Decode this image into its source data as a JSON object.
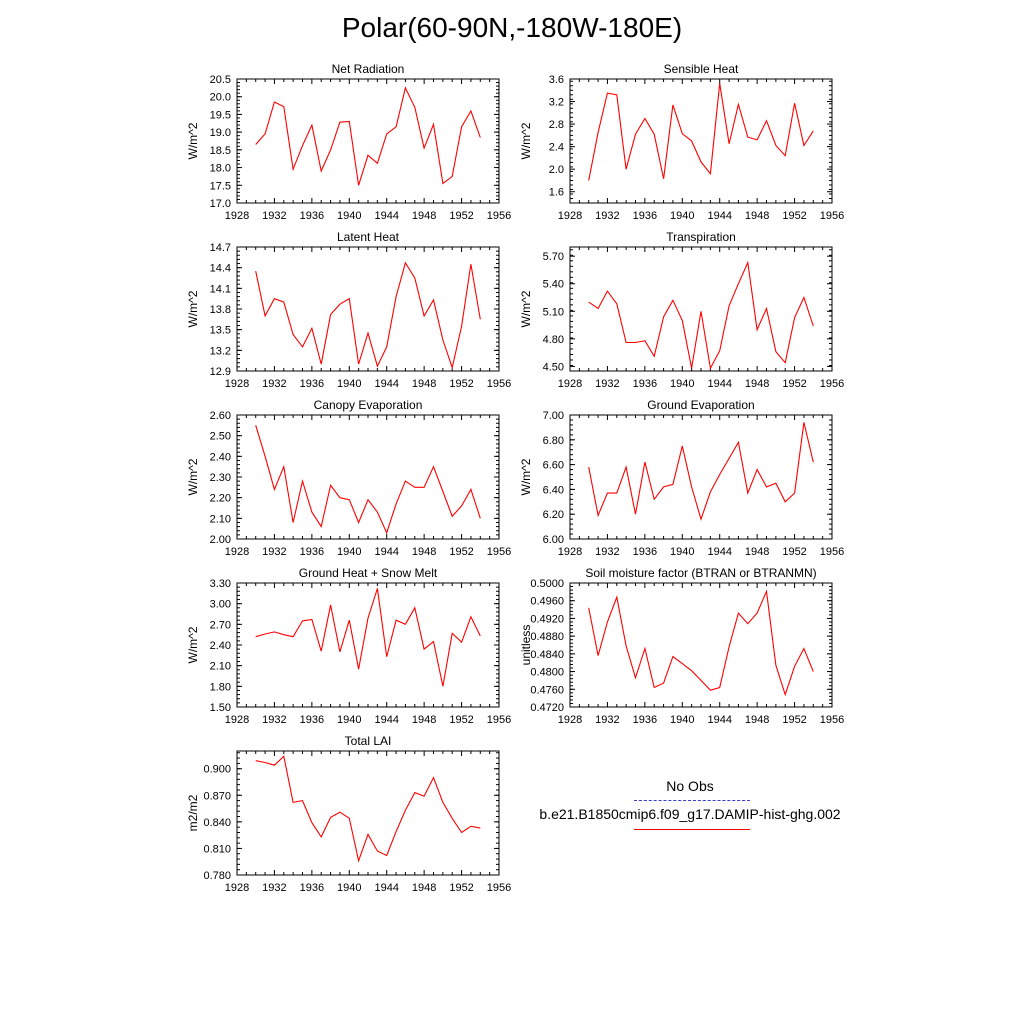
{
  "title": "Polar(60-90N,-180W-180E)",
  "legend": {
    "obs_label": "No Obs",
    "model_label": "b.e21.B1850cmip6.f09_g17.DAMIP-hist-ghg.002",
    "obs_color": "#3a3ad0",
    "model_color": "#ff0000"
  },
  "x_ticks": [
    1928,
    1932,
    1936,
    1940,
    1944,
    1948,
    1952,
    1956
  ],
  "years": [
    1930,
    1931,
    1932,
    1933,
    1934,
    1935,
    1936,
    1937,
    1938,
    1939,
    1940,
    1941,
    1942,
    1943,
    1944,
    1945,
    1946,
    1947,
    1948,
    1949,
    1950,
    1951,
    1952,
    1953,
    1954
  ],
  "chart_data": [
    {
      "type": "line",
      "title": "Net Radiation",
      "ylabel": "W/m^2",
      "xlim": [
        1928,
        1956
      ],
      "ylim": [
        17.0,
        20.5
      ],
      "yticks": [
        17.0,
        17.5,
        18.0,
        18.5,
        19.0,
        19.5,
        20.0,
        20.5
      ],
      "ytick_labels": [
        "17.0",
        "17.5",
        "18.0",
        "18.5",
        "19.0",
        "19.5",
        "20.0",
        "20.5"
      ],
      "series": [
        {
          "values": [
            18.65,
            18.95,
            19.85,
            19.72,
            17.95,
            18.62,
            19.2,
            17.9,
            18.5,
            19.28,
            19.3,
            17.5,
            18.35,
            18.12,
            18.95,
            19.15,
            20.25,
            19.7,
            18.55,
            19.22,
            17.55,
            17.75,
            19.15,
            19.6,
            18.85
          ]
        }
      ]
    },
    {
      "type": "line",
      "title": "Sensible Heat",
      "ylabel": "W/m^2",
      "xlim": [
        1928,
        1956
      ],
      "ylim": [
        1.4,
        3.6
      ],
      "yticks": [
        1.6,
        2.0,
        2.4,
        2.8,
        3.2,
        3.6
      ],
      "ytick_labels": [
        "1.6",
        "2.0",
        "2.4",
        "2.8",
        "3.2",
        "3.6"
      ],
      "series": [
        {
          "values": [
            1.8,
            2.65,
            3.35,
            3.32,
            2.0,
            2.62,
            2.9,
            2.62,
            1.83,
            3.14,
            2.63,
            2.5,
            2.13,
            1.92,
            3.52,
            2.45,
            3.15,
            2.57,
            2.52,
            2.86,
            2.42,
            2.24,
            3.17,
            2.42,
            2.68
          ]
        }
      ]
    },
    {
      "type": "line",
      "title": "Latent Heat",
      "ylabel": "W/m^2",
      "xlim": [
        1928,
        1956
      ],
      "ylim": [
        12.9,
        14.7
      ],
      "yticks": [
        12.9,
        13.2,
        13.5,
        13.8,
        14.1,
        14.4,
        14.7
      ],
      "ytick_labels": [
        "12.9",
        "13.2",
        "13.5",
        "13.8",
        "14.1",
        "14.4",
        "14.7"
      ],
      "series": [
        {
          "values": [
            14.35,
            13.7,
            13.95,
            13.9,
            13.43,
            13.25,
            13.52,
            13.0,
            13.72,
            13.87,
            13.95,
            13.0,
            13.45,
            12.97,
            13.25,
            13.98,
            14.47,
            14.25,
            13.7,
            13.93,
            13.35,
            12.95,
            13.55,
            14.45,
            13.65
          ]
        }
      ]
    },
    {
      "type": "line",
      "title": "Transpiration",
      "ylabel": "W/m^2",
      "xlim": [
        1928,
        1956
      ],
      "ylim": [
        4.45,
        5.8
      ],
      "yticks": [
        4.5,
        4.8,
        5.1,
        5.4,
        5.7
      ],
      "ytick_labels": [
        "4.50",
        "4.80",
        "5.10",
        "5.40",
        "5.70"
      ],
      "series": [
        {
          "values": [
            5.2,
            5.13,
            5.32,
            5.18,
            4.76,
            4.76,
            4.78,
            4.61,
            5.04,
            5.22,
            5.0,
            4.48,
            5.1,
            4.48,
            4.67,
            5.16,
            5.4,
            5.63,
            4.9,
            5.13,
            4.66,
            4.54,
            5.03,
            5.25,
            4.94
          ]
        }
      ]
    },
    {
      "type": "line",
      "title": "Canopy Evaporation",
      "ylabel": "W/m^2",
      "xlim": [
        1928,
        1956
      ],
      "ylim": [
        2.0,
        2.6
      ],
      "yticks": [
        2.0,
        2.1,
        2.2,
        2.3,
        2.4,
        2.5,
        2.6
      ],
      "ytick_labels": [
        "2.00",
        "2.10",
        "2.20",
        "2.30",
        "2.40",
        "2.50",
        "2.60"
      ],
      "series": [
        {
          "values": [
            2.55,
            2.4,
            2.24,
            2.35,
            2.08,
            2.28,
            2.13,
            2.06,
            2.26,
            2.2,
            2.19,
            2.08,
            2.19,
            2.13,
            2.03,
            2.17,
            2.28,
            2.25,
            2.25,
            2.35,
            2.23,
            2.11,
            2.16,
            2.24,
            2.1
          ]
        }
      ]
    },
    {
      "type": "line",
      "title": "Ground Evaporation",
      "ylabel": "W/m^2",
      "xlim": [
        1928,
        1956
      ],
      "ylim": [
        6.0,
        7.0
      ],
      "yticks": [
        6.0,
        6.2,
        6.4,
        6.6,
        6.8,
        7.0
      ],
      "ytick_labels": [
        "6.00",
        "6.20",
        "6.40",
        "6.60",
        "6.80",
        "7.00"
      ],
      "series": [
        {
          "values": [
            6.58,
            6.19,
            6.37,
            6.37,
            6.58,
            6.2,
            6.62,
            6.32,
            6.42,
            6.44,
            6.75,
            6.42,
            6.16,
            6.38,
            6.52,
            6.65,
            6.78,
            6.37,
            6.56,
            6.42,
            6.45,
            6.3,
            6.37,
            6.94,
            6.62
          ]
        }
      ]
    },
    {
      "type": "line",
      "title": "Ground Heat + Snow Melt",
      "ylabel": "W/m^2",
      "xlim": [
        1928,
        1956
      ],
      "ylim": [
        1.5,
        3.3
      ],
      "yticks": [
        1.5,
        1.8,
        2.1,
        2.4,
        2.7,
        3.0,
        3.3
      ],
      "ytick_labels": [
        "1.50",
        "1.80",
        "2.10",
        "2.40",
        "2.70",
        "3.00",
        "3.30"
      ],
      "series": [
        {
          "values": [
            2.52,
            2.56,
            2.59,
            2.55,
            2.52,
            2.75,
            2.77,
            2.31,
            2.98,
            2.3,
            2.76,
            2.05,
            2.79,
            3.22,
            2.23,
            2.76,
            2.7,
            2.94,
            2.34,
            2.45,
            1.8,
            2.57,
            2.44,
            2.81,
            2.53
          ]
        }
      ]
    },
    {
      "type": "line",
      "title": "Soil moisture factor (BTRAN or BTRANMN)",
      "ylabel": "unitless",
      "xlim": [
        1928,
        1956
      ],
      "ylim": [
        0.472,
        0.5
      ],
      "yticks": [
        0.472,
        0.476,
        0.48,
        0.484,
        0.488,
        0.492,
        0.496,
        0.5
      ],
      "ytick_labels": [
        "0.4720",
        "0.4760",
        "0.4800",
        "0.4840",
        "0.4880",
        "0.4920",
        "0.4960",
        "0.5000"
      ],
      "series": [
        {
          "values": [
            0.4944,
            0.4836,
            0.4912,
            0.4968,
            0.4858,
            0.4786,
            0.4852,
            0.4764,
            0.4774,
            0.4834,
            0.4818,
            0.4802,
            0.478,
            0.4758,
            0.4764,
            0.4856,
            0.4932,
            0.4908,
            0.4932,
            0.4981,
            0.4814,
            0.4748,
            0.4812,
            0.4852,
            0.48
          ]
        }
      ]
    },
    {
      "type": "line",
      "title": "Total LAI",
      "ylabel": "m2/m2",
      "xlim": [
        1928,
        1956
      ],
      "ylim": [
        0.78,
        0.92
      ],
      "yticks": [
        0.78,
        0.81,
        0.84,
        0.87,
        0.9
      ],
      "ytick_labels": [
        "0.780",
        "0.810",
        "0.840",
        "0.870",
        "0.900"
      ],
      "series": [
        {
          "values": [
            0.909,
            0.907,
            0.904,
            0.914,
            0.862,
            0.864,
            0.839,
            0.823,
            0.845,
            0.851,
            0.844,
            0.796,
            0.826,
            0.807,
            0.802,
            0.829,
            0.853,
            0.873,
            0.869,
            0.89,
            0.862,
            0.844,
            0.828,
            0.835,
            0.833
          ]
        }
      ]
    }
  ]
}
